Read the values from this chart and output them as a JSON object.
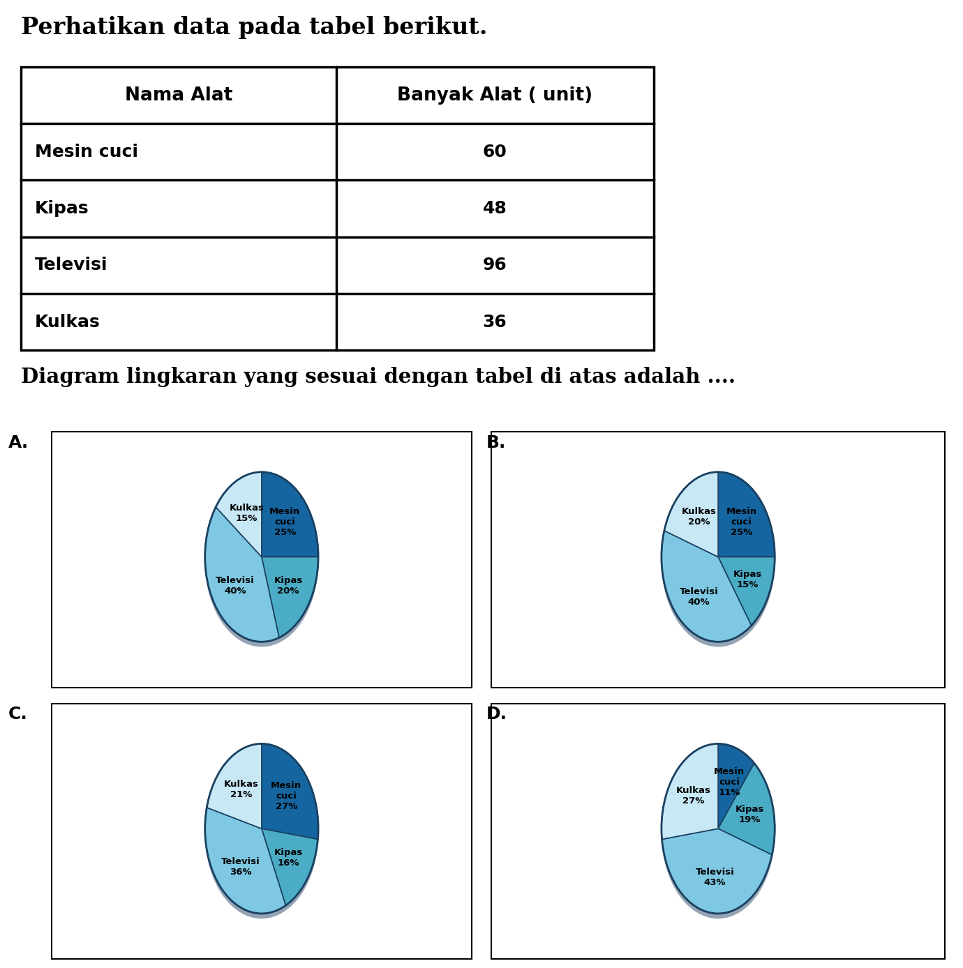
{
  "title": "Perhatikan data pada tabel berikut.",
  "subtitle": "Diagram lingkaran yang sesuai dengan tabel di atas adalah ....",
  "table_headers": [
    "Nama Alat",
    "Banyak Alat ( unit)"
  ],
  "table_rows": [
    [
      "Mesin cuci",
      "60"
    ],
    [
      "Kipas",
      "48"
    ],
    [
      "Televisi",
      "96"
    ],
    [
      "Kulkas",
      "36"
    ]
  ],
  "charts": [
    {
      "label": "A.",
      "segments": [
        {
          "name": "Mesin\ncuci\n25%",
          "pct": 25,
          "color": "#1565a0"
        },
        {
          "name": "Kipas\n20%",
          "pct": 20,
          "color": "#4bacc6"
        },
        {
          "name": "Televisi\n40%",
          "pct": 40,
          "color": "#7ec8e3"
        },
        {
          "name": "Kulkas\n15%",
          "pct": 15,
          "color": "#c8e8f5"
        }
      ]
    },
    {
      "label": "B.",
      "segments": [
        {
          "name": "Mesin\ncuci\n25%",
          "pct": 25,
          "color": "#1565a0"
        },
        {
          "name": "Kipas\n15%",
          "pct": 15,
          "color": "#4bacc6"
        },
        {
          "name": "Televisi\n40%",
          "pct": 40,
          "color": "#7ec8e3"
        },
        {
          "name": "Kulkas\n20%",
          "pct": 20,
          "color": "#c8e8f5"
        }
      ]
    },
    {
      "label": "C.",
      "segments": [
        {
          "name": "Mesin\ncuci\n27%",
          "pct": 27,
          "color": "#1565a0"
        },
        {
          "name": "Kipas\n16%",
          "pct": 16,
          "color": "#4bacc6"
        },
        {
          "name": "Televisi\n36%",
          "pct": 36,
          "color": "#7ec8e3"
        },
        {
          "name": "Kulkas\n21%",
          "pct": 21,
          "color": "#c8e8f5"
        }
      ]
    },
    {
      "label": "D.",
      "segments": [
        {
          "name": "Mesin\ncuci\n11%",
          "pct": 11,
          "color": "#1565a0"
        },
        {
          "name": "Kipas\n19%",
          "pct": 19,
          "color": "#4bacc6"
        },
        {
          "name": "Televisi\n43%",
          "pct": 43,
          "color": "#7ec8e3"
        },
        {
          "name": "Kulkas\n27%",
          "pct": 27,
          "color": "#c8e8f5"
        }
      ]
    }
  ],
  "pie_aspect": 1.5,
  "background_color": "#ffffff"
}
